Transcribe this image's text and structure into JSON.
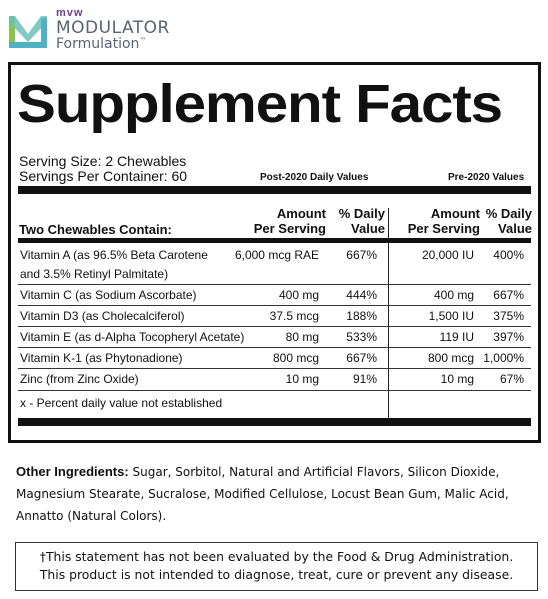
{
  "brand": {
    "brand_prefix": "mvw",
    "name": "MODULATOR",
    "sub": "Formulation",
    "trademark": "™",
    "colors": {
      "purple": "#6a3f8f",
      "teal": "#4fb2c4",
      "green": "#8bc34a",
      "gray": "#5a6470"
    }
  },
  "facts": {
    "title": "Supplement Facts",
    "serving_size": "Serving Size: 2 Chewables",
    "servings_per_container": "Servings Per Container: 60",
    "post_header": "Post-2020 Daily Values",
    "pre_header": "Pre-2020 Values",
    "contain_label": "Two Chewables Contain:",
    "col_amount_1": "Amount",
    "col_amount_2": "Per Serving",
    "col_dv_1": "% Daily",
    "col_dv_2": "Value",
    "rows": [
      {
        "name_1": "Vitamin A (as 96.5% Beta Carotene",
        "name_2": "and 3.5% Retinyl Palmitate)",
        "post_amount": "6,000 mcg RAE",
        "post_dv": "667%",
        "pre_amount": "20,000 IU",
        "pre_dv": "400%"
      },
      {
        "name_1": "Vitamin C (as Sodium Ascorbate)",
        "post_amount": "400 mg",
        "post_dv": "444%",
        "pre_amount": "400 mg",
        "pre_dv": "667%"
      },
      {
        "name_1": "Vitamin D3 (as Cholecalciferol)",
        "post_amount": "37.5 mcg",
        "post_dv": "188%",
        "pre_amount": "1,500 IU",
        "pre_dv": "375%"
      },
      {
        "name_1": "Vitamin E (as d-Alpha Tocopheryl Acetate)",
        "post_amount": "80 mg",
        "post_dv": "533%",
        "pre_amount": "119 IU",
        "pre_dv": "397%"
      },
      {
        "name_1": "Vitamin K-1 (as Phytonadione)",
        "post_amount": "800 mcg",
        "post_dv": "667%",
        "pre_amount": "800 mcg",
        "pre_dv": "1,000%"
      },
      {
        "name_1": "Zinc (from Zinc Oxide)",
        "post_amount": "10 mg",
        "post_dv": "91%",
        "pre_amount": "10 mg",
        "pre_dv": "67%"
      }
    ],
    "footnote": "x - Percent daily value not established"
  },
  "other_ingredients": {
    "label": "Other Ingredients:",
    "text": " Sugar, Sorbitol, Natural and Artificial Flavors, Silicon Dioxide, Magnesium Stearate, Sucralose, Modified Cellulose, Locust Bean Gum, Malic Acid, Annatto (Natural Colors)."
  },
  "disclaimer": {
    "line1": "†This statement has not been evaluated by the Food & Drug Administration.",
    "line2": "This product is not intended to diagnose, treat, cure or prevent any disease."
  }
}
